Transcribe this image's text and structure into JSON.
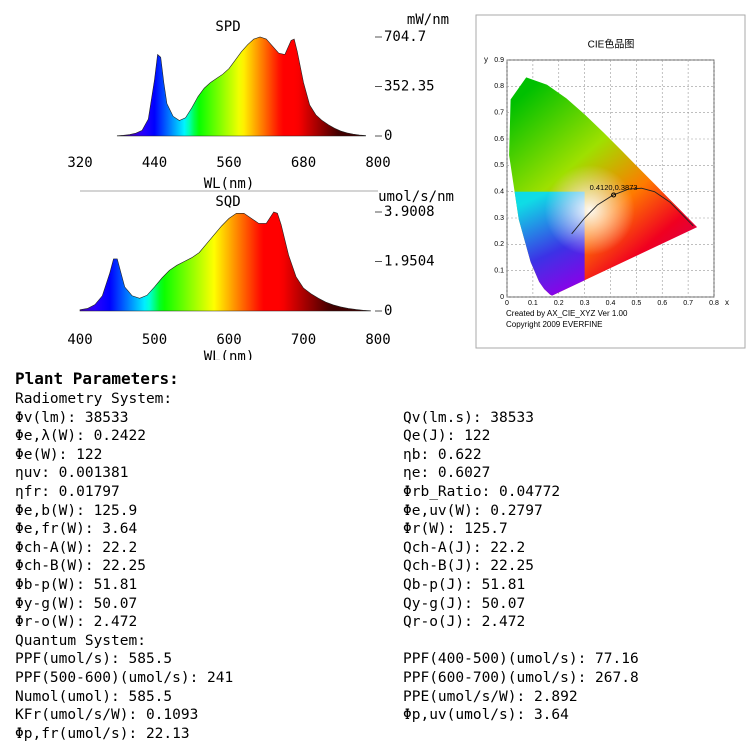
{
  "chart_data": [
    {
      "type": "area",
      "title": "SPD",
      "y_label": "mW/nm",
      "x_label": "WL(nm)",
      "xlim": [
        320,
        800
      ],
      "xticks": [
        320,
        440,
        560,
        680,
        800
      ],
      "ylim": [
        0,
        704.7
      ],
      "yticks": [
        0,
        352.35,
        704.7
      ],
      "x": [
        380,
        390,
        400,
        410,
        420,
        430,
        440,
        445,
        450,
        455,
        460,
        470,
        480,
        490,
        500,
        510,
        520,
        530,
        540,
        550,
        560,
        570,
        580,
        590,
        600,
        610,
        620,
        630,
        640,
        650,
        660,
        665,
        670,
        680,
        690,
        700,
        710,
        720,
        730,
        740,
        750,
        760,
        770,
        780
      ],
      "values": [
        2,
        5,
        10,
        20,
        40,
        120,
        400,
        580,
        560,
        380,
        230,
        140,
        110,
        130,
        200,
        280,
        340,
        380,
        410,
        440,
        480,
        540,
        600,
        650,
        690,
        704.7,
        690,
        640,
        590,
        580,
        680,
        690,
        600,
        380,
        220,
        150,
        110,
        80,
        55,
        35,
        22,
        13,
        7,
        3
      ]
    },
    {
      "type": "area",
      "title": "SQD",
      "y_label": "umol/s/nm",
      "x_label": "WL(nm)",
      "xlim": [
        400,
        800
      ],
      "xticks": [
        400,
        500,
        600,
        700,
        800
      ],
      "ylim": [
        0,
        3.9008
      ],
      "yticks": [
        0,
        1.9504,
        3.9008
      ],
      "x": [
        400,
        410,
        420,
        430,
        440,
        445,
        450,
        455,
        460,
        470,
        480,
        490,
        500,
        510,
        520,
        530,
        540,
        550,
        560,
        570,
        580,
        590,
        600,
        610,
        620,
        630,
        640,
        650,
        660,
        665,
        670,
        680,
        690,
        700,
        710,
        720,
        730,
        740,
        750,
        760,
        770,
        780,
        790
      ],
      "values": [
        0.05,
        0.1,
        0.25,
        0.6,
        1.5,
        2.05,
        2.05,
        1.5,
        0.95,
        0.6,
        0.5,
        0.62,
        0.95,
        1.3,
        1.6,
        1.8,
        1.95,
        2.1,
        2.3,
        2.65,
        3.0,
        3.35,
        3.65,
        3.85,
        3.85,
        3.65,
        3.45,
        3.45,
        3.9008,
        3.85,
        3.4,
        2.2,
        1.35,
        0.9,
        0.68,
        0.5,
        0.35,
        0.24,
        0.16,
        0.1,
        0.06,
        0.03,
        0.01
      ]
    },
    {
      "type": "scatter",
      "title": "CIE色品图",
      "x_label": "x",
      "y_label": "y",
      "xlim": [
        0,
        0.8
      ],
      "xticks": [
        0,
        0.1,
        0.2,
        0.3,
        0.4,
        0.5,
        0.6,
        0.7,
        0.8
      ],
      "ylim": [
        0,
        0.9
      ],
      "yticks": [
        0,
        0.1,
        0.2,
        0.3,
        0.4,
        0.5,
        0.6,
        0.7,
        0.8,
        0.9
      ],
      "grid": true,
      "point": {
        "x": 0.412,
        "y": 0.3873,
        "label": "0.4120,0.3873"
      },
      "notes": [
        "Created by AX_CIE_XYZ Ver 1.00",
        "Copyright 2009 EVERFINE"
      ]
    }
  ],
  "report": {
    "heading": "Plant Parameters:",
    "sections": [
      {
        "title": "Radiometry System:",
        "rows": [
          [
            "Φv(lm): 38533",
            "Qv(lm.s): 38533"
          ],
          [
            "Φe,λ(W): 0.2422",
            "Qe(J): 122"
          ],
          [
            "Φe(W): 122",
            "ηb: 0.622"
          ],
          [
            "ηuv: 0.001381",
            "ηe: 0.6027"
          ],
          [
            "ηfr: 0.01797",
            "Φrb_Ratio: 0.04772"
          ],
          [
            "Φe,b(W): 125.9",
            "Φe,uv(W): 0.2797"
          ],
          [
            "Φe,fr(W): 3.64",
            "Φr(W): 125.7"
          ],
          [
            "Φch-A(W): 22.2",
            "Qch-A(J): 22.2"
          ],
          [
            "Φch-B(W): 22.25",
            "Qch-B(J): 22.25"
          ],
          [
            "Φb-p(W): 51.81",
            "Qb-p(J): 51.81"
          ],
          [
            "Φy-g(W): 50.07",
            "Qy-g(J): 50.07"
          ],
          [
            "Φr-o(W): 2.472",
            "Qr-o(J): 2.472"
          ]
        ]
      },
      {
        "title": "Quantum System:",
        "rows": [
          [
            "PPF(umol/s): 585.5",
            "PPF(400-500)(umol/s): 77.16"
          ],
          [
            "PPF(500-600)(umol/s): 241",
            "PPF(600-700)(umol/s): 267.8"
          ],
          [
            "Numol(umol): 585.5",
            "PPE(umol/s/W): 2.892"
          ],
          [
            "KFr(umol/s/W): 0.1093",
            "Φp,uv(umol/s): 3.64"
          ],
          [
            "Φp,fr(umol/s): 22.13"
          ]
        ]
      }
    ]
  }
}
